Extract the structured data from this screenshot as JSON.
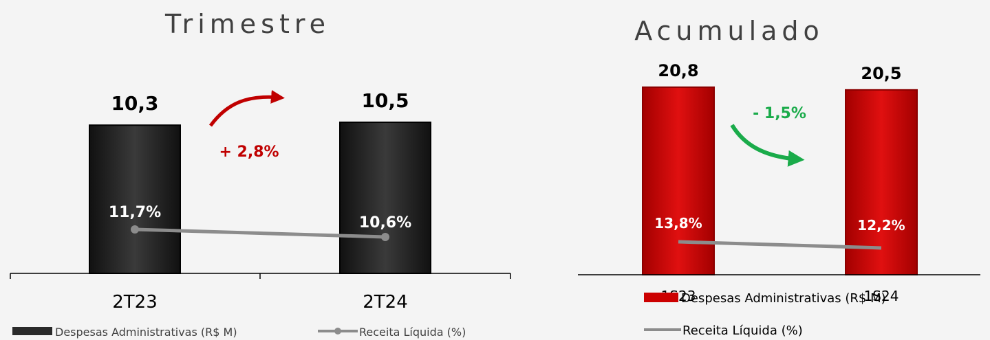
{
  "chart_data": [
    {
      "type": "bar",
      "title": "Trimestre",
      "categories": [
        "2T23",
        "2T24"
      ],
      "series": [
        {
          "name": "Despesas Administrativas (R$ M)",
          "values": [
            10.3,
            10.5
          ],
          "labels": [
            "10,3",
            "10,5"
          ]
        },
        {
          "name": "Receita Líquida (%)",
          "type": "line",
          "values": [
            11.7,
            10.6
          ],
          "labels": [
            "11,7%",
            "10,6%"
          ]
        }
      ],
      "annotation": {
        "text": "+ 2,8%",
        "direction": "up"
      },
      "colors": {
        "bar": "#2a2a2a",
        "line": "#8c8c8c",
        "annotation": "#c00000"
      },
      "legend_position": "bottom"
    },
    {
      "type": "bar",
      "title": "Acumulado",
      "categories": [
        "1S23",
        "1S24"
      ],
      "series": [
        {
          "name": "Despesas Administrativas (R$ M)",
          "values": [
            20.8,
            20.5
          ],
          "labels": [
            "20,8",
            "20,5"
          ]
        },
        {
          "name": "Receita Líquida (%)",
          "type": "line",
          "values": [
            13.8,
            12.2
          ],
          "labels": [
            "13,8%",
            "12,2%"
          ]
        }
      ],
      "annotation": {
        "text": "- 1,5%",
        "direction": "down"
      },
      "colors": {
        "bar": "#cc0000",
        "line": "#8c8c8c",
        "annotation": "#1aab4a"
      },
      "legend_position": "bottom"
    }
  ]
}
